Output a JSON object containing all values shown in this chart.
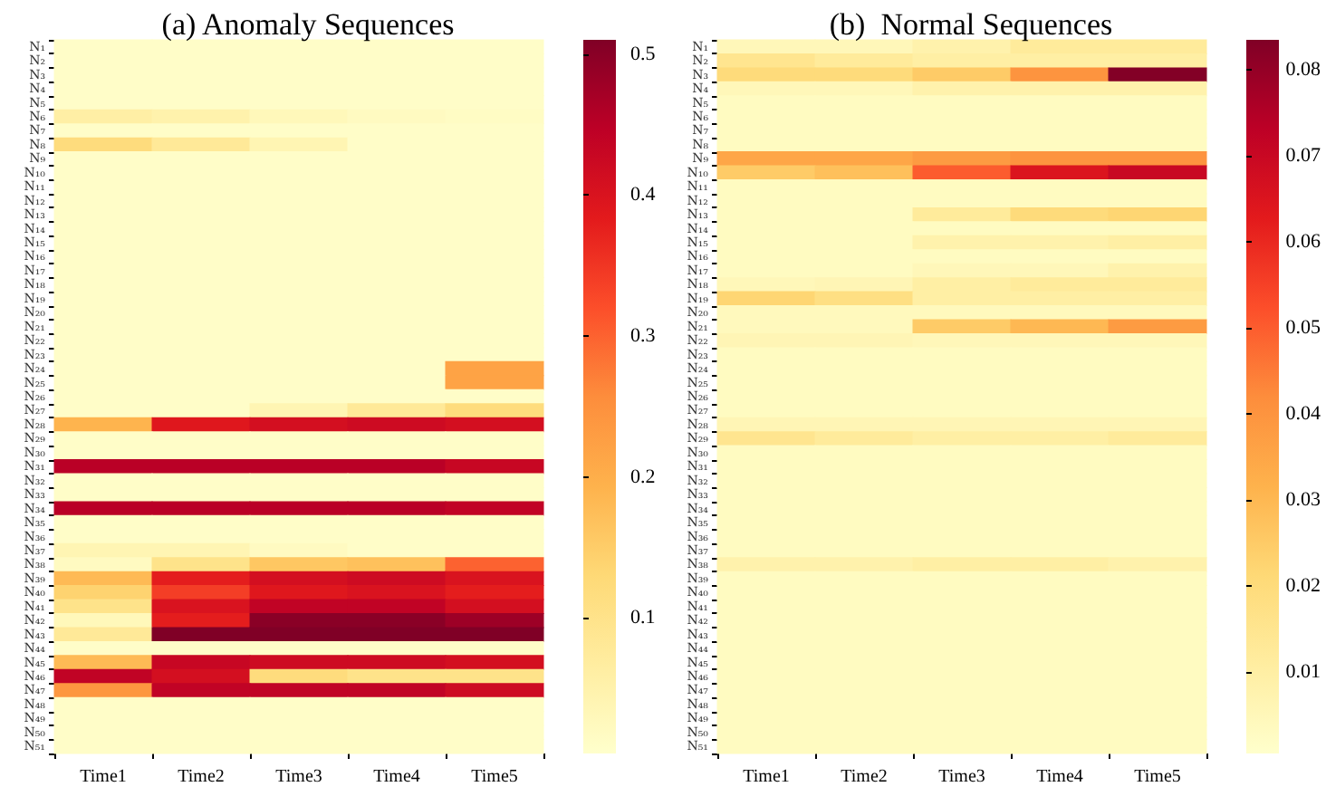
{
  "chart_data": [
    {
      "type": "heatmap",
      "title": "(a) Anomaly Sequences",
      "categories": [
        "Time1",
        "Time2",
        "Time3",
        "Time4",
        "Time5"
      ],
      "y_categories": [
        "N₁",
        "N₂",
        "N₃",
        "N₄",
        "N₅",
        "N₆",
        "N₇",
        "N₈",
        "N₉",
        "N₁₀",
        "N₁₁",
        "N₁₂",
        "N₁₃",
        "N₁₄",
        "N₁₅",
        "N₁₆",
        "N₁₇",
        "N₁₈",
        "N₁₉",
        "N₂₀",
        "N₂₁",
        "N₂₂",
        "N₂₃",
        "N₂₄",
        "N₂₅",
        "N₂₆",
        "N₂₇",
        "N₂₈",
        "N₂₉",
        "N₃₀",
        "N₃₁",
        "N₃₂",
        "N₃₃",
        "N₃₄",
        "N₃₅",
        "N₃₆",
        "N₃₇",
        "N₃₈",
        "N₃₉",
        "N₄₀",
        "N₄₁",
        "N₄₂",
        "N₄₃",
        "N₄₄",
        "N₄₅",
        "N₄₆",
        "N₄₇",
        "N₄₈",
        "N₄₉",
        "N₅₀",
        "N₅₁"
      ],
      "cells": [
        [
          0.01,
          0.01,
          0.01,
          0.01,
          0.01
        ],
        [
          0.01,
          0.01,
          0.01,
          0.01,
          0.01
        ],
        [
          0.01,
          0.01,
          0.01,
          0.01,
          0.01
        ],
        [
          0.01,
          0.01,
          0.01,
          0.01,
          0.01
        ],
        [
          0.01,
          0.01,
          0.01,
          0.01,
          0.01
        ],
        [
          0.06,
          0.05,
          0.03,
          0.02,
          0.015
        ],
        [
          0.01,
          0.01,
          0.01,
          0.01,
          0.01
        ],
        [
          0.12,
          0.08,
          0.04,
          0.01,
          0.01
        ],
        [
          0.01,
          0.01,
          0.01,
          0.01,
          0.01
        ],
        [
          0.01,
          0.01,
          0.01,
          0.01,
          0.01
        ],
        [
          0.01,
          0.01,
          0.01,
          0.01,
          0.01
        ],
        [
          0.01,
          0.01,
          0.01,
          0.01,
          0.01
        ],
        [
          0.01,
          0.01,
          0.01,
          0.01,
          0.01
        ],
        [
          0.01,
          0.01,
          0.01,
          0.01,
          0.01
        ],
        [
          0.01,
          0.01,
          0.01,
          0.01,
          0.01
        ],
        [
          0.01,
          0.01,
          0.01,
          0.01,
          0.01
        ],
        [
          0.01,
          0.01,
          0.01,
          0.01,
          0.01
        ],
        [
          0.01,
          0.01,
          0.01,
          0.01,
          0.01
        ],
        [
          0.01,
          0.01,
          0.01,
          0.01,
          0.01
        ],
        [
          0.01,
          0.01,
          0.01,
          0.01,
          0.01
        ],
        [
          0.01,
          0.01,
          0.01,
          0.01,
          0.01
        ],
        [
          0.01,
          0.01,
          0.01,
          0.01,
          0.01
        ],
        [
          0.01,
          0.01,
          0.01,
          0.01,
          0.01
        ],
        [
          0.01,
          0.01,
          0.01,
          0.01,
          0.22
        ],
        [
          0.01,
          0.01,
          0.01,
          0.01,
          0.22
        ],
        [
          0.01,
          0.01,
          0.01,
          0.01,
          0.01
        ],
        [
          0.01,
          0.01,
          0.04,
          0.08,
          0.12
        ],
        [
          0.19,
          0.39,
          0.41,
          0.42,
          0.41
        ],
        [
          0.01,
          0.01,
          0.01,
          0.01,
          0.01
        ],
        [
          0.01,
          0.01,
          0.01,
          0.01,
          0.01
        ],
        [
          0.45,
          0.45,
          0.45,
          0.45,
          0.43
        ],
        [
          0.01,
          0.01,
          0.01,
          0.01,
          0.01
        ],
        [
          0.01,
          0.01,
          0.01,
          0.01,
          0.01
        ],
        [
          0.45,
          0.45,
          0.45,
          0.45,
          0.44
        ],
        [
          0.01,
          0.01,
          0.01,
          0.01,
          0.01
        ],
        [
          0.01,
          0.01,
          0.01,
          0.01,
          0.01
        ],
        [
          0.04,
          0.04,
          0.02,
          0.01,
          0.01
        ],
        [
          0.02,
          0.1,
          0.16,
          0.17,
          0.3
        ],
        [
          0.18,
          0.38,
          0.41,
          0.42,
          0.4
        ],
        [
          0.14,
          0.34,
          0.39,
          0.4,
          0.38
        ],
        [
          0.1,
          0.4,
          0.44,
          0.44,
          0.41
        ],
        [
          0.03,
          0.38,
          0.5,
          0.5,
          0.48
        ],
        [
          0.08,
          0.51,
          0.51,
          0.51,
          0.51
        ],
        [
          0.01,
          0.01,
          0.01,
          0.01,
          0.01
        ],
        [
          0.18,
          0.43,
          0.42,
          0.42,
          0.41
        ],
        [
          0.44,
          0.41,
          0.12,
          0.1,
          0.1
        ],
        [
          0.24,
          0.44,
          0.44,
          0.44,
          0.42
        ],
        [
          0.01,
          0.01,
          0.01,
          0.01,
          0.01
        ],
        [
          0.01,
          0.01,
          0.01,
          0.01,
          0.01
        ],
        [
          0.01,
          0.01,
          0.01,
          0.01,
          0.01
        ],
        [
          0.01,
          0.01,
          0.01,
          0.01,
          0.01
        ]
      ],
      "clim": [
        0.004,
        0.51
      ],
      "cticks": [
        0.1,
        0.2,
        0.3,
        0.4,
        0.5
      ]
    },
    {
      "type": "heatmap",
      "title": "(b)  Normal Sequences",
      "categories": [
        "Time1",
        "Time2",
        "Time3",
        "Time4",
        "Time5"
      ],
      "y_categories": [
        "N₁",
        "N₂",
        "N₃",
        "N₄",
        "N₅",
        "N₆",
        "N₇",
        "N₈",
        "N₉",
        "N₁₀",
        "N₁₁",
        "N₁₂",
        "N₁₃",
        "N₁₄",
        "N₁₅",
        "N₁₆",
        "N₁₇",
        "N₁₈",
        "N₁₉",
        "N₂₀",
        "N₂₁",
        "N₂₂",
        "N₂₃",
        "N₂₄",
        "N₂₅",
        "N₂₆",
        "N₂₇",
        "N₂₈",
        "N₂₉",
        "N₃₀",
        "N₃₁",
        "N₃₂",
        "N₃₃",
        "N₃₄",
        "N₃₅",
        "N₃₆",
        "N₃₇",
        "N₃₈",
        "N₃₉",
        "N₄₀",
        "N₄₁",
        "N₄₂",
        "N₄₃",
        "N₄₄",
        "N₄₅",
        "N₄₆",
        "N₄₇",
        "N₄₈",
        "N₄₉",
        "N₅₀",
        "N₅₁"
      ],
      "cells": [
        [
          0.005,
          0.005,
          0.008,
          0.012,
          0.012
        ],
        [
          0.015,
          0.012,
          0.01,
          0.01,
          0.01
        ],
        [
          0.02,
          0.02,
          0.025,
          0.04,
          0.083
        ],
        [
          0.005,
          0.005,
          0.008,
          0.008,
          0.008
        ],
        [
          0.003,
          0.003,
          0.003,
          0.003,
          0.003
        ],
        [
          0.003,
          0.003,
          0.003,
          0.003,
          0.003
        ],
        [
          0.003,
          0.003,
          0.003,
          0.003,
          0.003
        ],
        [
          0.003,
          0.003,
          0.003,
          0.003,
          0.003
        ],
        [
          0.035,
          0.035,
          0.038,
          0.04,
          0.04
        ],
        [
          0.025,
          0.028,
          0.05,
          0.065,
          0.07
        ],
        [
          0.003,
          0.003,
          0.003,
          0.003,
          0.003
        ],
        [
          0.003,
          0.003,
          0.003,
          0.003,
          0.003
        ],
        [
          0.003,
          0.003,
          0.012,
          0.02,
          0.022
        ],
        [
          0.003,
          0.003,
          0.003,
          0.003,
          0.003
        ],
        [
          0.003,
          0.003,
          0.008,
          0.008,
          0.01
        ],
        [
          0.003,
          0.003,
          0.003,
          0.003,
          0.003
        ],
        [
          0.003,
          0.003,
          0.005,
          0.005,
          0.008
        ],
        [
          0.005,
          0.006,
          0.01,
          0.012,
          0.012
        ],
        [
          0.022,
          0.018,
          0.01,
          0.01,
          0.01
        ],
        [
          0.004,
          0.004,
          0.004,
          0.004,
          0.004
        ],
        [
          0.004,
          0.004,
          0.025,
          0.03,
          0.038
        ],
        [
          0.006,
          0.006,
          0.005,
          0.005,
          0.005
        ],
        [
          0.003,
          0.003,
          0.003,
          0.003,
          0.003
        ],
        [
          0.003,
          0.003,
          0.003,
          0.003,
          0.003
        ],
        [
          0.003,
          0.003,
          0.003,
          0.003,
          0.003
        ],
        [
          0.003,
          0.003,
          0.003,
          0.003,
          0.003
        ],
        [
          0.003,
          0.003,
          0.003,
          0.003,
          0.003
        ],
        [
          0.006,
          0.006,
          0.006,
          0.006,
          0.006
        ],
        [
          0.015,
          0.012,
          0.01,
          0.01,
          0.012
        ],
        [
          0.003,
          0.003,
          0.003,
          0.003,
          0.003
        ],
        [
          0.003,
          0.003,
          0.003,
          0.003,
          0.003
        ],
        [
          0.003,
          0.003,
          0.003,
          0.003,
          0.003
        ],
        [
          0.003,
          0.003,
          0.003,
          0.003,
          0.003
        ],
        [
          0.003,
          0.003,
          0.003,
          0.003,
          0.003
        ],
        [
          0.003,
          0.003,
          0.003,
          0.003,
          0.003
        ],
        [
          0.003,
          0.003,
          0.003,
          0.003,
          0.003
        ],
        [
          0.003,
          0.003,
          0.003,
          0.003,
          0.003
        ],
        [
          0.008,
          0.008,
          0.01,
          0.01,
          0.008
        ],
        [
          0.003,
          0.003,
          0.003,
          0.003,
          0.003
        ],
        [
          0.003,
          0.003,
          0.003,
          0.003,
          0.003
        ],
        [
          0.003,
          0.003,
          0.003,
          0.003,
          0.003
        ],
        [
          0.003,
          0.003,
          0.003,
          0.003,
          0.003
        ],
        [
          0.003,
          0.003,
          0.003,
          0.003,
          0.003
        ],
        [
          0.003,
          0.003,
          0.003,
          0.003,
          0.003
        ],
        [
          0.003,
          0.003,
          0.003,
          0.003,
          0.003
        ],
        [
          0.003,
          0.003,
          0.003,
          0.003,
          0.003
        ],
        [
          0.003,
          0.003,
          0.003,
          0.003,
          0.003
        ],
        [
          0.003,
          0.003,
          0.003,
          0.003,
          0.003
        ],
        [
          0.003,
          0.003,
          0.003,
          0.003,
          0.003
        ],
        [
          0.003,
          0.003,
          0.003,
          0.003,
          0.003
        ],
        [
          0.003,
          0.003,
          0.003,
          0.003,
          0.003
        ]
      ],
      "clim": [
        0.0005,
        0.0835
      ],
      "cticks": [
        0.01,
        0.02,
        0.03,
        0.04,
        0.05,
        0.06,
        0.07,
        0.08
      ]
    }
  ]
}
